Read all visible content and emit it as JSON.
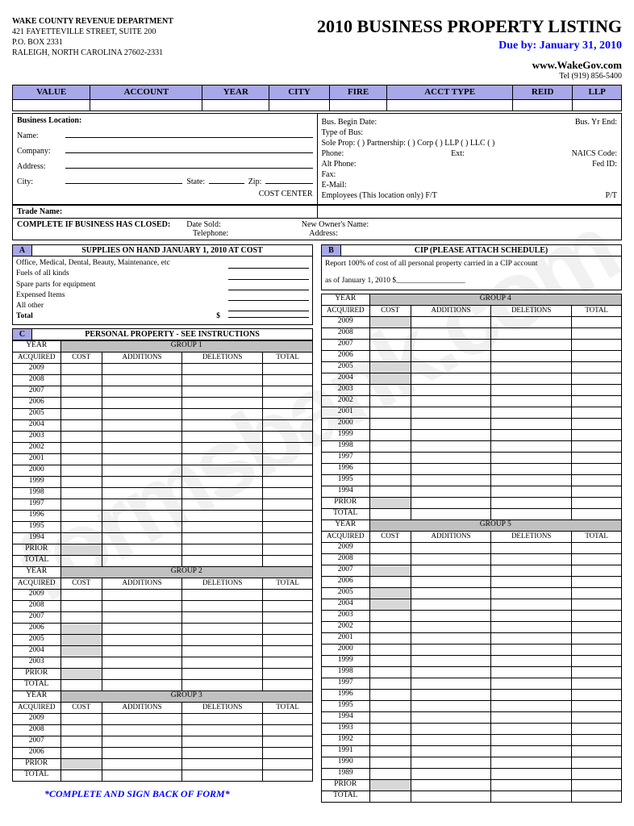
{
  "dept": {
    "name": "WAKE COUNTY REVENUE DEPARTMENT",
    "addr1": "421 FAYETTEVILLE STREET, SUITE 200",
    "addr2": "P.O. BOX 2331",
    "addr3": "RALEIGH, NORTH CAROLINA 27602-2331"
  },
  "title": "2010 BUSINESS PROPERTY LISTING",
  "due": "Due by: January 31, 2010",
  "website": "www.WakeGov.com",
  "tel": "Tel (919) 856-5400",
  "watermark": "formsbank.com",
  "topHeaders": [
    "VALUE",
    "ACCOUNT",
    "YEAR",
    "CITY",
    "FIRE",
    "ACCT TYPE",
    "REID",
    "LLP"
  ],
  "bizloc": {
    "title": "Business Location:",
    "name": "Name:",
    "company": "Company:",
    "address": "Address:",
    "city": "City:",
    "state": "State:",
    "zip": "Zip:",
    "cost": "COST CENTER"
  },
  "bizright": {
    "begin": "Bus. Begin Date:",
    "end": "Bus. Yr End:",
    "type": "Type of Bus:",
    "entity": "Sole Prop: ( )    Partnership: ( )    Corp ( )    LLP ( )    LLC ( )",
    "phone": "Phone:",
    "ext": "Ext:",
    "naics": "NAICS Code:",
    "altphone": "Alt Phone:",
    "fedid": "Fed ID:",
    "fax": "Fax:",
    "email": "E-Mail:",
    "emp": "Employees (This location only) F/T",
    "pt": "P/T"
  },
  "trade": "Trade Name:",
  "closed": {
    "title": "COMPLETE IF BUSINESS HAS CLOSED:",
    "sold": "Date Sold:",
    "owner": "New Owner's Name:",
    "tel": "Telephone:",
    "addr": "Address:"
  },
  "secA": {
    "letter": "A",
    "title": "SUPPLIES ON HAND JANUARY 1, 2010 AT COST",
    "items": [
      "Office, Medical, Dental, Beauty, Maintenance, etc",
      "Fuels of all kinds",
      "Spare parts for equipment",
      "Expensed Items",
      "All other"
    ],
    "total": "Total",
    "dollar": "$"
  },
  "secC": {
    "letter": "C",
    "title": "PERSONAL PROPERTY - SEE INSTRUCTIONS"
  },
  "secB": {
    "letter": "B",
    "title": "CIP (PLEASE ATTACH SCHEDULE)",
    "text1": "Report 100% of cost of all personal property carried in a CIP account",
    "text2": "as of January 1, 2010  $__________________"
  },
  "cols": {
    "year": "YEAR",
    "acq": "ACQUIRED",
    "cost": "COST",
    "add": "ADDITIONS",
    "del": "DELETIONS",
    "tot": "TOTAL",
    "prior": "PRIOR",
    "total": "TOTAL"
  },
  "groups": {
    "g1": "GROUP 1",
    "g2": "GROUP 2",
    "g3": "GROUP 3",
    "g4": "GROUP 4",
    "g5": "GROUP 5"
  },
  "years16": [
    "2009",
    "2008",
    "2007",
    "2006",
    "2005",
    "2004",
    "2003",
    "2002",
    "2001",
    "2000",
    "1999",
    "1998",
    "1997",
    "1996",
    "1995",
    "1994"
  ],
  "years7": [
    "2009",
    "2008",
    "2007",
    "2006",
    "2005",
    "2004",
    "2003"
  ],
  "years4": [
    "2009",
    "2008",
    "2007",
    "2006"
  ],
  "years21": [
    "2009",
    "2008",
    "2007",
    "2006",
    "2005",
    "2004",
    "2003",
    "2002",
    "2001",
    "2000",
    "1999",
    "1998",
    "1997",
    "1996",
    "1995",
    "1994",
    "1993",
    "1992",
    "1991",
    "1990",
    "1989"
  ],
  "footer": "*COMPLETE AND SIGN BACK OF FORM*",
  "colors": {
    "hdrBg": "#a8a8e8",
    "shade": "#d8d8d8",
    "blue": "#0000ff"
  }
}
